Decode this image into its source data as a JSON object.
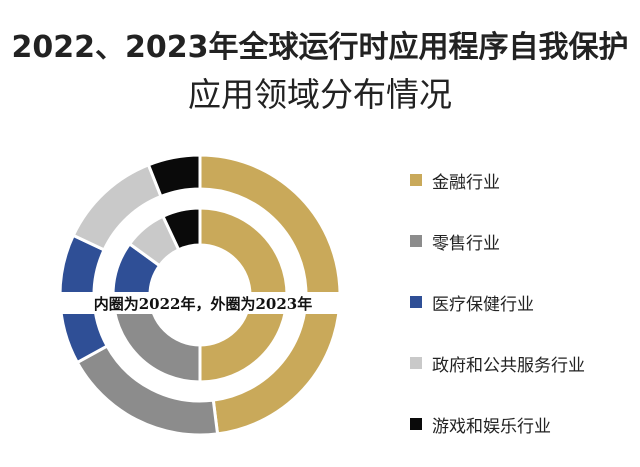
{
  "chart_data": {
    "type": "pie",
    "title_line1": "2022、2023年全球运行时应用程序自我保护",
    "title_line2": "应用领域分布情况",
    "annotation": "内圈为2022年，外圈为2023年",
    "categories": [
      "金融行业",
      "零售行业",
      "医疗保健行业",
      "政府和公共服务行业",
      "游戏和娱乐行业"
    ],
    "colors": [
      "#c9a95a",
      "#8c8c8c",
      "#2f4f96",
      "#c9c9c9",
      "#0a0a0a"
    ],
    "series": [
      {
        "name": "2023年",
        "values": [
          48,
          19,
          15,
          12,
          6
        ]
      },
      {
        "name": "2022年",
        "values": [
          50,
          25,
          10,
          8,
          7
        ]
      }
    ],
    "legend_position": "right"
  }
}
